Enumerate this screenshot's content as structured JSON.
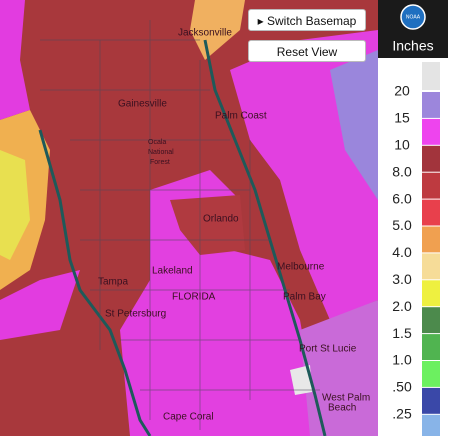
{
  "buttons": {
    "switch_basemap": "Switch Basemap",
    "reset_view": "Reset View"
  },
  "logo": "NOAA",
  "legend": {
    "title": "Inches",
    "items": [
      {
        "label": "20",
        "color": "#9c86dc"
      },
      {
        "label": "15",
        "color": "#ee44ee"
      },
      {
        "label": "10",
        "color": "#a2343c"
      },
      {
        "label": "8.0",
        "color": "#be3a40"
      },
      {
        "label": "6.0",
        "color": "#e8404c"
      },
      {
        "label": "5.0",
        "color": "#f0a050"
      },
      {
        "label": "4.0",
        "color": "#f6dc98"
      },
      {
        "label": "3.0",
        "color": "#eef040"
      },
      {
        "label": "2.0",
        "color": "#4c8a4c"
      },
      {
        "label": "1.5",
        "color": "#50b450"
      },
      {
        "label": "1.0",
        "color": "#6cf060"
      },
      {
        "label": ".50",
        "color": "#3a48a8"
      },
      {
        "label": ".25",
        "color": "#88b4e8"
      }
    ]
  },
  "places": [
    "Jacksonville",
    "Gainesville",
    "Palm Coast",
    "Ocala",
    "National",
    "Forest",
    "Orlando",
    "Melbourne",
    "Lakeland",
    "Tampa",
    "FLORIDA",
    "Palm Bay",
    "St Petersburg",
    "Port St Lucie",
    "West Palm",
    "Beach",
    "Cape Coral"
  ]
}
